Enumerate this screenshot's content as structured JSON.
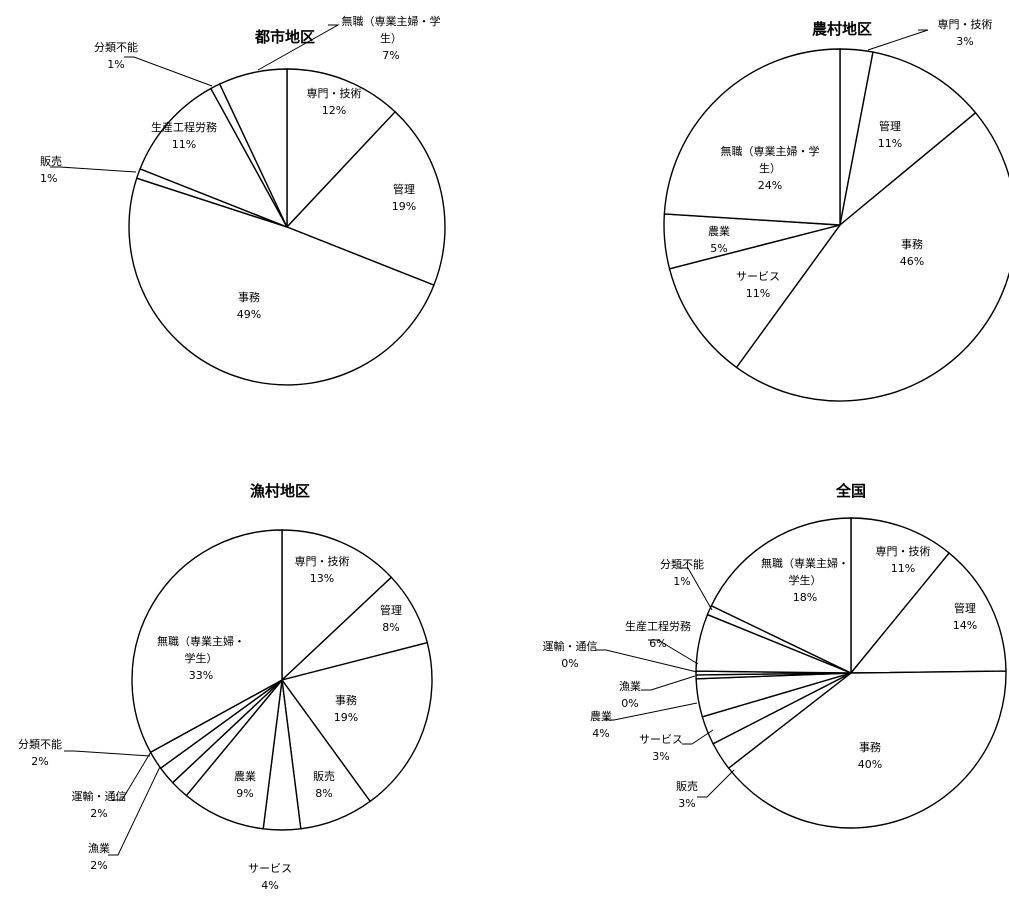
{
  "chart_data": [
    {
      "type": "pie",
      "title": "都市地区",
      "slices": [
        {
          "label": [
            "専門・技術"
          ],
          "value": 12,
          "text": "12%"
        },
        {
          "label": [
            "管理"
          ],
          "value": 19,
          "text": "19%"
        },
        {
          "label": [
            "事務"
          ],
          "value": 49,
          "text": "49%"
        },
        {
          "label": [
            "販売"
          ],
          "value": 1,
          "text": "1%"
        },
        {
          "label": [
            "生産工程労務"
          ],
          "value": 11,
          "text": "11%"
        },
        {
          "label": [
            "分類不能"
          ],
          "value": 1,
          "text": "1%"
        },
        {
          "label": [
            "無職（専業主婦・学",
            "生）"
          ],
          "value": 7,
          "text": "7%"
        }
      ]
    },
    {
      "type": "pie",
      "title": "農村地区",
      "slices": [
        {
          "label": [
            "専門・技術"
          ],
          "value": 3,
          "text": "3%"
        },
        {
          "label": [
            "管理"
          ],
          "value": 11,
          "text": "11%"
        },
        {
          "label": [
            "事務"
          ],
          "value": 46,
          "text": "46%"
        },
        {
          "label": [
            "サービス"
          ],
          "value": 11,
          "text": "11%"
        },
        {
          "label": [
            "農業"
          ],
          "value": 5,
          "text": "5%"
        },
        {
          "label": [
            "無職（専業主婦・学",
            "生）"
          ],
          "value": 24,
          "text": "24%"
        }
      ]
    },
    {
      "type": "pie",
      "title": "漁村地区",
      "slices": [
        {
          "label": [
            "専門・技術"
          ],
          "value": 13,
          "text": "13%"
        },
        {
          "label": [
            "管理"
          ],
          "value": 8,
          "text": "8%"
        },
        {
          "label": [
            "事務"
          ],
          "value": 19,
          "text": "19%"
        },
        {
          "label": [
            "販売"
          ],
          "value": 8,
          "text": "8%"
        },
        {
          "label": [
            "サービス"
          ],
          "value": 4,
          "text": "4%"
        },
        {
          "label": [
            "農業"
          ],
          "value": 9,
          "text": "9%"
        },
        {
          "label": [
            "漁業"
          ],
          "value": 2,
          "text": "2%"
        },
        {
          "label": [
            "運輸・通信"
          ],
          "value": 2,
          "text": "2%"
        },
        {
          "label": [
            "分類不能"
          ],
          "value": 2,
          "text": "2%"
        },
        {
          "label": [
            "無職（専業主婦・",
            "学生）"
          ],
          "value": 33,
          "text": "33%"
        }
      ]
    },
    {
      "type": "pie",
      "title": "全国",
      "slices": [
        {
          "label": [
            "専門・技術"
          ],
          "value": 11,
          "text": "11%"
        },
        {
          "label": [
            "管理"
          ],
          "value": 14,
          "text": "14%"
        },
        {
          "label": [
            "事務"
          ],
          "value": 40,
          "text": "40%"
        },
        {
          "label": [
            "販売"
          ],
          "value": 3,
          "text": "3%"
        },
        {
          "label": [
            "サービス"
          ],
          "value": 3,
          "text": "3%"
        },
        {
          "label": [
            "農業"
          ],
          "value": 4,
          "text": "4%"
        },
        {
          "label": [
            "漁業"
          ],
          "value": 0.4,
          "text": "0%"
        },
        {
          "label": [
            "運輸・通信"
          ],
          "value": 0.4,
          "text": "0%"
        },
        {
          "label": [
            "生産工程労務"
          ],
          "value": 6,
          "text": "6%"
        },
        {
          "label": [
            "分類不能"
          ],
          "value": 1,
          "text": "1%"
        },
        {
          "label": [
            "無職（専業主婦・",
            "学生）"
          ],
          "value": 18,
          "text": "18%"
        }
      ]
    }
  ]
}
